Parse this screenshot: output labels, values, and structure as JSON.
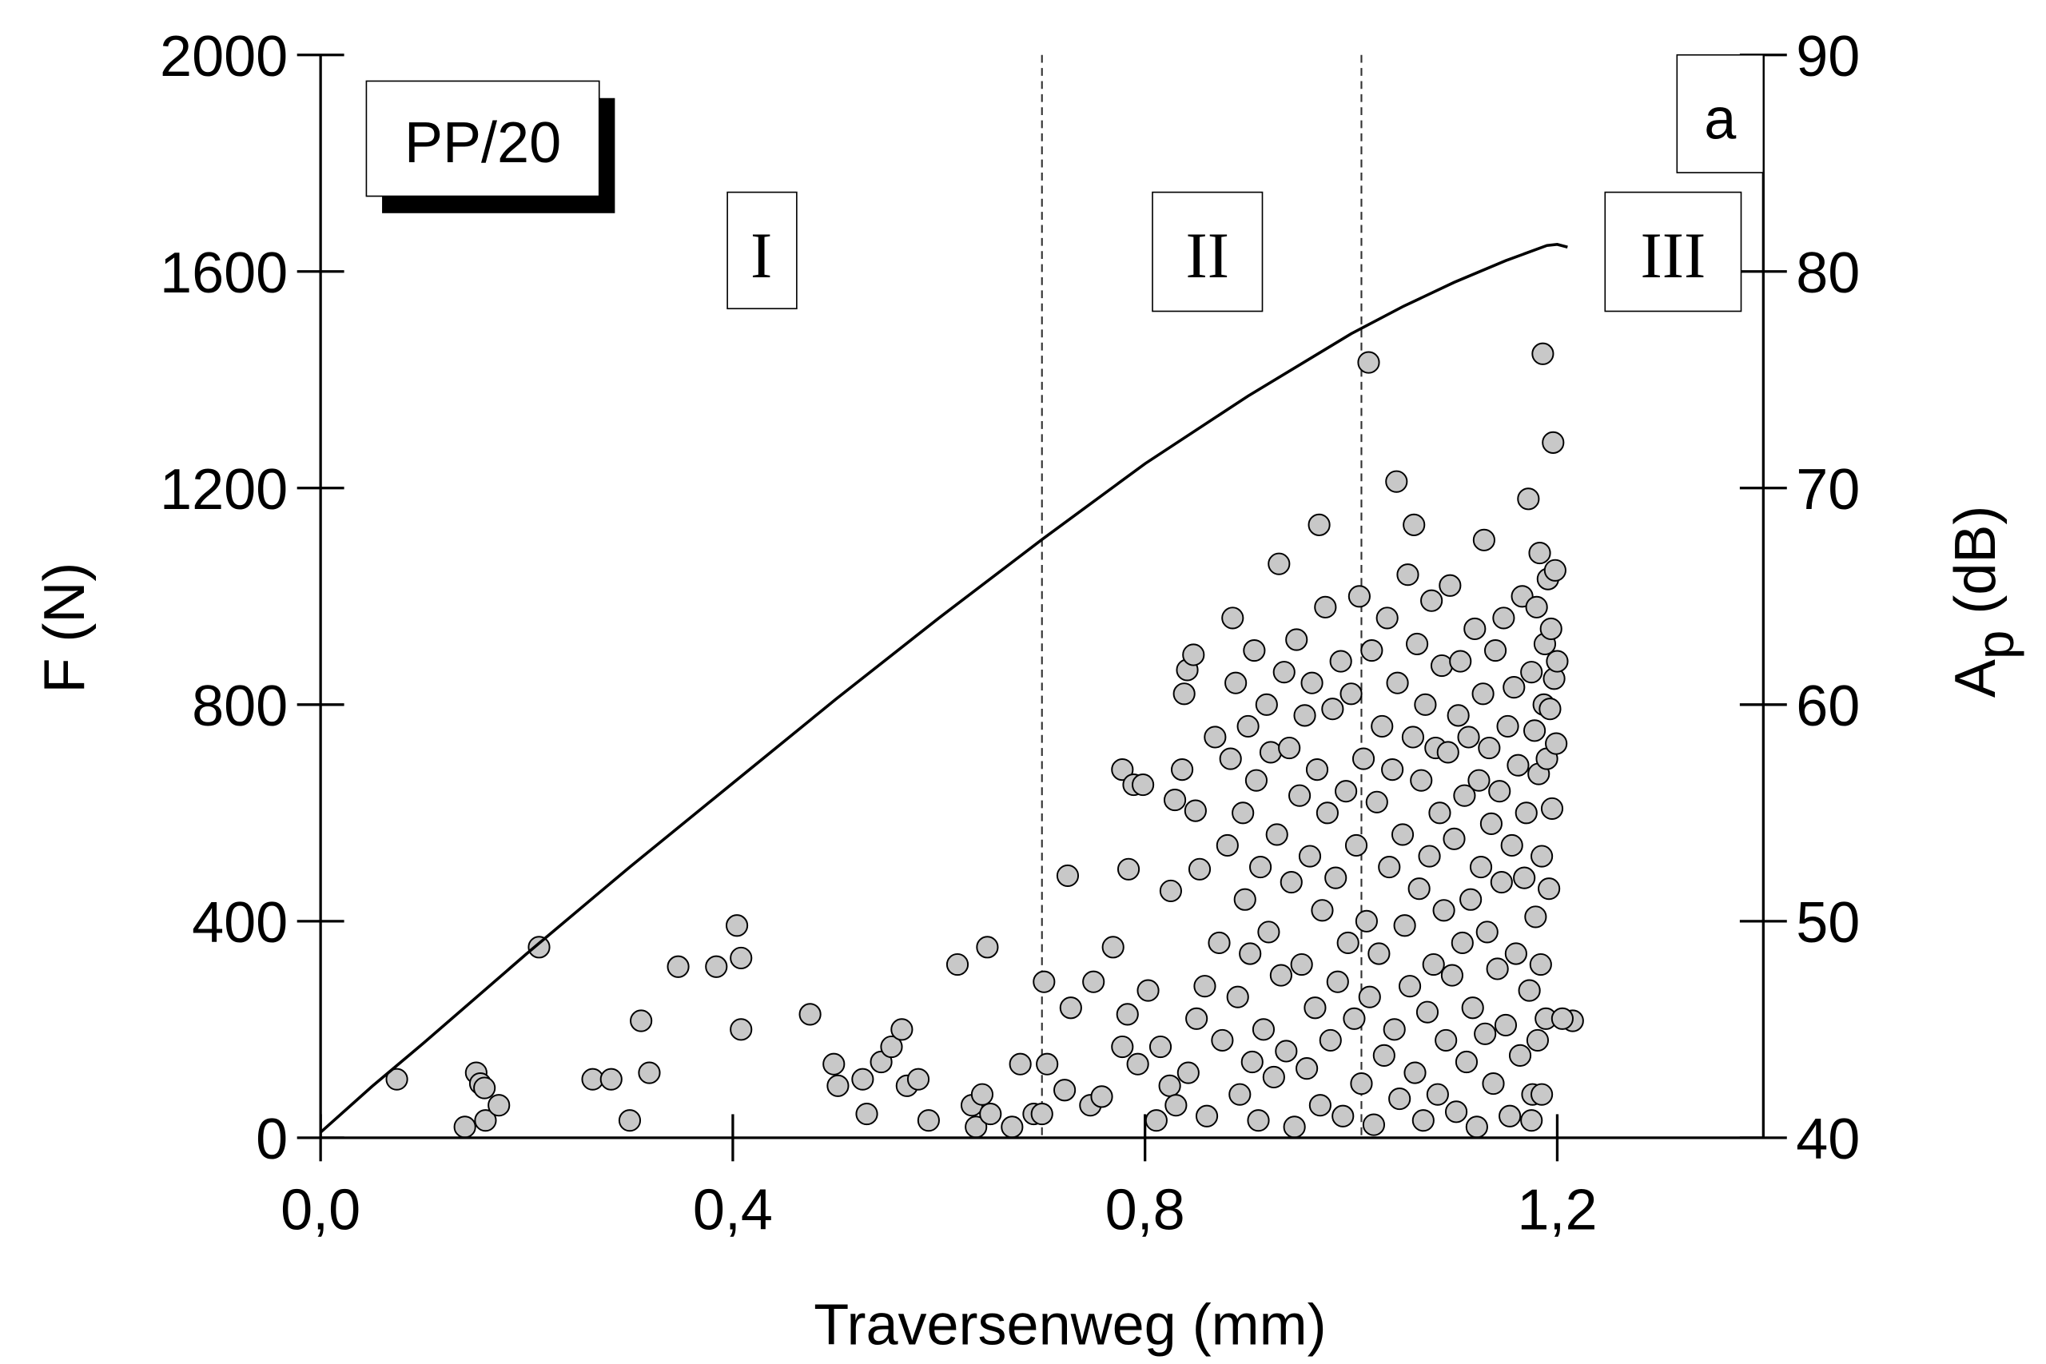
{
  "chart_data": {
    "type": "scatter+line",
    "xlabel": "Traversenweg (mm)",
    "ylabel": "F (N)",
    "y2label_main": "A",
    "y2label_sub": "p",
    "y2label_unit": " (dB)",
    "xlim": [
      0,
      1.4
    ],
    "ylim": [
      0,
      2000
    ],
    "y2lim": [
      40,
      90
    ],
    "x_ticks": [
      0,
      0.4,
      0.8,
      1.2
    ],
    "x_tick_labels": [
      "0,0",
      "0,4",
      "0,8",
      "1,2"
    ],
    "y_ticks": [
      0,
      400,
      800,
      1200,
      1600,
      2000
    ],
    "y_tick_labels": [
      "0",
      "400",
      "800",
      "1200",
      "1600",
      "2000"
    ],
    "y2_ticks": [
      40,
      50,
      60,
      70,
      80,
      90
    ],
    "y2_tick_labels": [
      "40",
      "50",
      "60",
      "70",
      "80",
      "90"
    ],
    "grid": false,
    "specimen_label": "PP/20",
    "panel_label": "a",
    "regions": [
      {
        "label": "I",
        "x": 0.43
      },
      {
        "label": "II",
        "x": 0.86
      },
      {
        "label": "III",
        "x": 1.31
      }
    ],
    "region_boundaries": [
      0.7,
      1.01
    ],
    "colors": {
      "marker_fill": "#c8c8c8",
      "marker_edge": "#000000",
      "line": "#000000"
    },
    "force_curve": {
      "name": "F",
      "x": [
        0,
        0.05,
        0.1,
        0.2,
        0.3,
        0.4,
        0.5,
        0.6,
        0.7,
        0.8,
        0.9,
        1.0,
        1.05,
        1.1,
        1.15,
        1.19,
        1.2,
        1.21
      ],
      "y": [
        10,
        95,
        175,
        340,
        500,
        655,
        810,
        960,
        1105,
        1245,
        1370,
        1485,
        1535,
        1580,
        1620,
        1648,
        1650,
        1645
      ]
    },
    "amplitude_points": [
      [
        0.074,
        42.7
      ],
      [
        0.151,
        43.0
      ],
      [
        0.155,
        42.5
      ],
      [
        0.159,
        42.3
      ],
      [
        0.14,
        40.5
      ],
      [
        0.16,
        40.8
      ],
      [
        0.173,
        41.5
      ],
      [
        0.212,
        48.8
      ],
      [
        0.264,
        42.7
      ],
      [
        0.282,
        42.7
      ],
      [
        0.3,
        40.8
      ],
      [
        0.311,
        45.4
      ],
      [
        0.319,
        43.0
      ],
      [
        0.347,
        47.9
      ],
      [
        0.384,
        47.9
      ],
      [
        0.404,
        49.8
      ],
      [
        0.408,
        48.3
      ],
      [
        0.408,
        45.0
      ],
      [
        0.475,
        45.7
      ],
      [
        0.498,
        43.4
      ],
      [
        0.502,
        42.4
      ],
      [
        0.526,
        42.7
      ],
      [
        0.53,
        41.1
      ],
      [
        0.544,
        43.5
      ],
      [
        0.554,
        44.2
      ],
      [
        0.564,
        45.0
      ],
      [
        0.569,
        42.4
      ],
      [
        0.58,
        42.7
      ],
      [
        0.59,
        40.8
      ],
      [
        0.618,
        48.0
      ],
      [
        0.632,
        41.5
      ],
      [
        0.642,
        42.0
      ],
      [
        0.647,
        48.8
      ],
      [
        0.636,
        40.5
      ],
      [
        0.65,
        41.1
      ],
      [
        0.671,
        40.5
      ],
      [
        0.679,
        43.4
      ],
      [
        0.692,
        41.1
      ],
      [
        0.7,
        41.1
      ],
      [
        0.702,
        47.2
      ],
      [
        0.705,
        43.4
      ],
      [
        0.725,
        52.1
      ],
      [
        0.722,
        42.2
      ],
      [
        0.728,
        46.0
      ],
      [
        0.747,
        41.5
      ],
      [
        0.75,
        47.2
      ],
      [
        0.758,
        41.9
      ],
      [
        0.769,
        48.8
      ],
      [
        0.778,
        57.0
      ],
      [
        0.784,
        52.4
      ],
      [
        0.789,
        56.3
      ],
      [
        0.798,
        56.3
      ],
      [
        0.803,
        46.8
      ],
      [
        0.783,
        45.7
      ],
      [
        0.778,
        44.2
      ],
      [
        0.793,
        43.4
      ],
      [
        0.811,
        40.8
      ],
      [
        0.815,
        44.2
      ],
      [
        0.825,
        51.4
      ],
      [
        0.824,
        42.4
      ],
      [
        0.829,
        55.6
      ],
      [
        0.836,
        57.0
      ],
      [
        0.838,
        60.5
      ],
      [
        0.841,
        61.6
      ],
      [
        0.847,
        62.3
      ],
      [
        0.849,
        55.1
      ],
      [
        0.853,
        52.4
      ],
      [
        0.83,
        41.5
      ],
      [
        0.842,
        43.0
      ],
      [
        0.85,
        45.5
      ],
      [
        0.858,
        47.0
      ],
      [
        0.86,
        41.0
      ],
      [
        0.868,
        58.5
      ],
      [
        0.872,
        49.0
      ],
      [
        0.875,
        44.5
      ],
      [
        0.88,
        53.5
      ],
      [
        0.883,
        57.5
      ],
      [
        0.885,
        64.0
      ],
      [
        0.888,
        61.0
      ],
      [
        0.89,
        46.5
      ],
      [
        0.892,
        42.0
      ],
      [
        0.895,
        55.0
      ],
      [
        0.897,
        51.0
      ],
      [
        0.9,
        59.0
      ],
      [
        0.902,
        48.5
      ],
      [
        0.904,
        43.5
      ],
      [
        0.906,
        62.5
      ],
      [
        0.908,
        56.5
      ],
      [
        0.91,
        40.8
      ],
      [
        0.912,
        52.5
      ],
      [
        0.915,
        45.0
      ],
      [
        0.918,
        60.0
      ],
      [
        0.92,
        49.5
      ],
      [
        0.922,
        57.8
      ],
      [
        0.925,
        42.8
      ],
      [
        0.928,
        54.0
      ],
      [
        0.93,
        66.5
      ],
      [
        0.932,
        47.5
      ],
      [
        0.935,
        61.5
      ],
      [
        0.937,
        44.0
      ],
      [
        0.94,
        58.0
      ],
      [
        0.942,
        51.8
      ],
      [
        0.945,
        40.5
      ],
      [
        0.947,
        63.0
      ],
      [
        0.95,
        55.8
      ],
      [
        0.952,
        48.0
      ],
      [
        0.955,
        59.5
      ],
      [
        0.957,
        43.2
      ],
      [
        0.96,
        53.0
      ],
      [
        0.962,
        61.0
      ],
      [
        0.965,
        46.0
      ],
      [
        0.967,
        57.0
      ],
      [
        0.969,
        68.3
      ],
      [
        0.97,
        41.5
      ],
      [
        0.972,
        50.5
      ],
      [
        0.975,
        64.5
      ],
      [
        0.977,
        55.0
      ],
      [
        0.98,
        44.5
      ],
      [
        0.982,
        59.8
      ],
      [
        0.985,
        52.0
      ],
      [
        0.987,
        47.2
      ],
      [
        0.99,
        62.0
      ],
      [
        0.992,
        41.0
      ],
      [
        0.995,
        56.0
      ],
      [
        0.997,
        49.0
      ],
      [
        1.0,
        60.5
      ],
      [
        1.003,
        45.5
      ],
      [
        1.005,
        53.5
      ],
      [
        1.008,
        65.0
      ],
      [
        1.01,
        42.5
      ],
      [
        1.012,
        57.5
      ],
      [
        1.015,
        50.0
      ],
      [
        1.017,
        75.8
      ],
      [
        1.018,
        46.5
      ],
      [
        1.02,
        62.5
      ],
      [
        1.022,
        40.6
      ],
      [
        1.025,
        55.5
      ],
      [
        1.027,
        48.5
      ],
      [
        1.03,
        59.0
      ],
      [
        1.032,
        43.8
      ],
      [
        1.035,
        64.0
      ],
      [
        1.037,
        52.5
      ],
      [
        1.04,
        57.0
      ],
      [
        1.042,
        45.0
      ],
      [
        1.044,
        70.3
      ],
      [
        1.045,
        61.0
      ],
      [
        1.047,
        41.8
      ],
      [
        1.05,
        54.0
      ],
      [
        1.052,
        49.8
      ],
      [
        1.055,
        66.0
      ],
      [
        1.057,
        47.0
      ],
      [
        1.06,
        58.5
      ],
      [
        1.061,
        68.3
      ],
      [
        1.062,
        43.0
      ],
      [
        1.064,
        62.8
      ],
      [
        1.066,
        51.5
      ],
      [
        1.068,
        56.5
      ],
      [
        1.07,
        40.8
      ],
      [
        1.072,
        60.0
      ],
      [
        1.074,
        45.8
      ],
      [
        1.076,
        53.0
      ],
      [
        1.078,
        64.8
      ],
      [
        1.08,
        48.0
      ],
      [
        1.082,
        58.0
      ],
      [
        1.084,
        42.0
      ],
      [
        1.086,
        55.0
      ],
      [
        1.088,
        61.8
      ],
      [
        1.09,
        50.5
      ],
      [
        1.092,
        44.5
      ],
      [
        1.094,
        57.8
      ],
      [
        1.096,
        65.5
      ],
      [
        1.098,
        47.5
      ],
      [
        1.1,
        53.8
      ],
      [
        1.102,
        41.2
      ],
      [
        1.104,
        59.5
      ],
      [
        1.106,
        62.0
      ],
      [
        1.108,
        49.0
      ],
      [
        1.11,
        55.8
      ],
      [
        1.112,
        43.5
      ],
      [
        1.114,
        58.5
      ],
      [
        1.116,
        51.0
      ],
      [
        1.118,
        46.0
      ],
      [
        1.12,
        63.5
      ],
      [
        1.122,
        40.5
      ],
      [
        1.124,
        56.5
      ],
      [
        1.126,
        52.5
      ],
      [
        1.128,
        60.5
      ],
      [
        1.129,
        67.6
      ],
      [
        1.13,
        44.8
      ],
      [
        1.132,
        49.5
      ],
      [
        1.134,
        58.0
      ],
      [
        1.136,
        54.5
      ],
      [
        1.138,
        42.5
      ],
      [
        1.14,
        62.5
      ],
      [
        1.142,
        47.8
      ],
      [
        1.144,
        56.0
      ],
      [
        1.146,
        51.8
      ],
      [
        1.148,
        64.0
      ],
      [
        1.15,
        45.2
      ],
      [
        1.152,
        59.0
      ],
      [
        1.154,
        41.0
      ],
      [
        1.156,
        53.5
      ],
      [
        1.158,
        60.8
      ],
      [
        1.16,
        48.5
      ],
      [
        1.162,
        57.2
      ],
      [
        1.164,
        43.8
      ],
      [
        1.166,
        65.0
      ],
      [
        1.168,
        52.0
      ],
      [
        1.17,
        55.0
      ],
      [
        1.172,
        69.5
      ],
      [
        1.173,
        46.8
      ],
      [
        1.175,
        61.5
      ],
      [
        1.176,
        42.0
      ],
      [
        1.178,
        58.8
      ],
      [
        1.179,
        50.2
      ],
      [
        1.18,
        64.5
      ],
      [
        1.181,
        44.5
      ],
      [
        1.182,
        56.8
      ],
      [
        1.183,
        67.0
      ],
      [
        1.184,
        48.0
      ],
      [
        1.185,
        53.0
      ],
      [
        1.186,
        76.2
      ],
      [
        1.187,
        60.0
      ],
      [
        1.188,
        62.8
      ],
      [
        1.189,
        45.5
      ],
      [
        1.19,
        57.5
      ],
      [
        1.191,
        65.8
      ],
      [
        1.192,
        51.5
      ],
      [
        1.193,
        59.8
      ],
      [
        1.194,
        63.5
      ],
      [
        1.195,
        55.2
      ],
      [
        1.196,
        72.1
      ],
      [
        1.197,
        61.2
      ],
      [
        1.198,
        66.2
      ],
      [
        1.199,
        58.2
      ],
      [
        1.2,
        62.0
      ],
      [
        1.215,
        45.4
      ],
      [
        1.205,
        45.5
      ],
      [
        1.185,
        42.0
      ],
      [
        1.175,
        40.8
      ]
    ]
  }
}
